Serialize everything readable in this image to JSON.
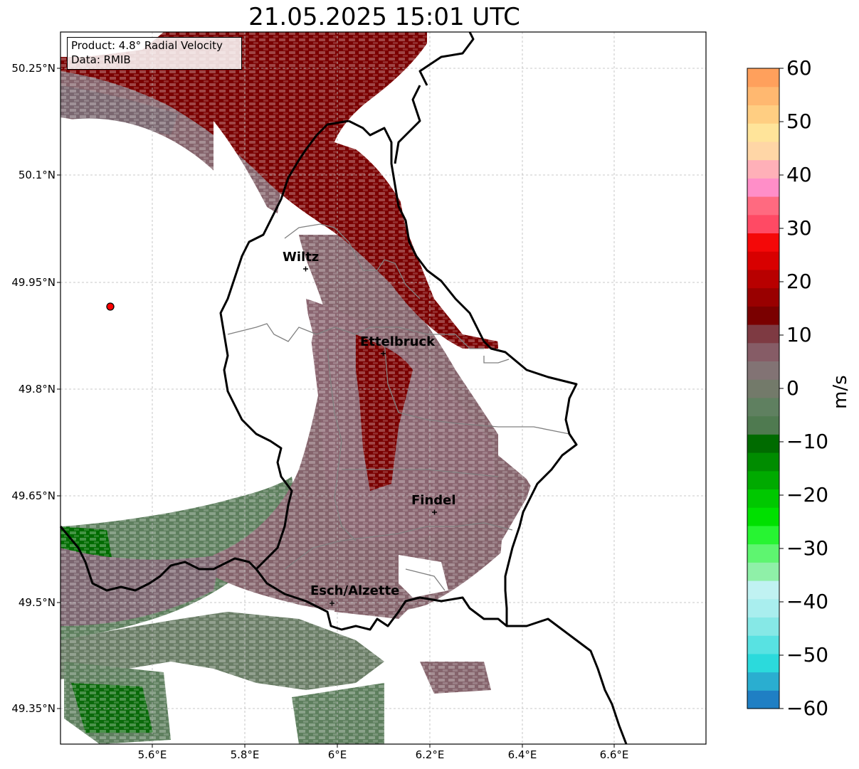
{
  "title": "21.05.2025 15:01 UTC",
  "info": {
    "product": "Product: 4.8° Radial Velocity",
    "data": "Data: RMIB"
  },
  "lat_labels": [
    "50.25°N",
    "50.1°N",
    "49.95°N",
    "49.8°N",
    "49.65°N",
    "49.5°N",
    "49.35°N"
  ],
  "lon_labels": [
    "5.6°E",
    "5.8°E",
    "6°E",
    "6.2°E",
    "6.4°E",
    "6.6°E"
  ],
  "cities": [
    {
      "name": "Wiltz"
    },
    {
      "name": "Ettelbruck"
    },
    {
      "name": "Findel"
    },
    {
      "name": "Esch/Alzette"
    }
  ],
  "colorbar": {
    "label": "m/s",
    "ticks": [
      "60",
      "50",
      "40",
      "30",
      "20",
      "10",
      "0",
      "−10",
      "−20",
      "−30",
      "−40",
      "−50",
      "−60"
    ],
    "min": -60,
    "max": 60,
    "colors": [
      "#1f7fc4",
      "#2aaed0",
      "#2bdadc",
      "#58e2e2",
      "#86e8e6",
      "#a9eeee",
      "#c0f2f2",
      "#8ff0a8",
      "#5ef570",
      "#27f432",
      "#00e000",
      "#00c800",
      "#00aa00",
      "#008c00",
      "#006b00",
      "#4f7a50",
      "#5f8060",
      "#737a6a",
      "#827374",
      "#865c66",
      "#7e3a42",
      "#7a0000",
      "#990000",
      "#b80000",
      "#d80000",
      "#f40808",
      "#ff4a64",
      "#ff6a80",
      "#ff8ec8",
      "#ffb0b8",
      "#ffd6a6",
      "#ffe49a",
      "#ffce82",
      "#ffb870",
      "#ffa05c"
    ]
  },
  "radar_site": {
    "color": "#ff0000"
  },
  "colors": {
    "inbound_strong": "#006b00",
    "inbound_weak": "#5e7f5e",
    "near_zero": "#85646c",
    "outbound": "#7a0000",
    "border": "#000000",
    "district": "#808080"
  }
}
